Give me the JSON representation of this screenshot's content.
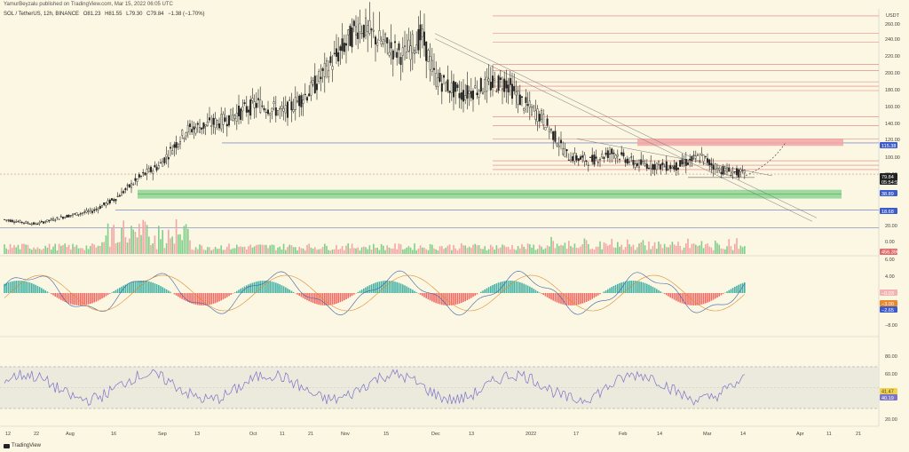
{
  "header": {
    "publisher": "YamurBeyzalu published on TradingView.com, Mar 15, 2022 06:05 UTC",
    "symbol": "SOL / TetherUS, 12h, BINANCE",
    "open": "O81.23",
    "high": "H81.55",
    "low": "L79.30",
    "close": "C79.84",
    "change": "−1.38 (−1.70%)"
  },
  "currency": "USDT",
  "logo": "TradingView",
  "colors": {
    "background": "#fbf7e2",
    "up_candle": "#222222",
    "down_candle": "#222222",
    "support_zone": "#7fcf8a",
    "resistance_zone": "#f2a6a6",
    "macd_pos": "#26a69a",
    "macd_neg": "#ef5350",
    "rsi_line": "#7b74c9",
    "rsi_band": "#e9e5dc"
  },
  "chart_data": [
    {
      "type": "line",
      "name_hint": "price",
      "x_ticks": [
        "12",
        "22",
        "Aug",
        "16",
        "Sep",
        "13",
        "Oct",
        "11",
        "21",
        "Nov",
        "15",
        "Dec",
        "13",
        "2022",
        "17",
        "Feb",
        "14",
        "Mar",
        "14",
        "Apr",
        "11",
        "21"
      ],
      "y_ticks": [
        260,
        240,
        220,
        200,
        180,
        160,
        140,
        120,
        100,
        80,
        60,
        40
      ],
      "ylim": [
        20,
        270
      ],
      "x": [
        "Jul 10",
        "Jul 25",
        "Aug 5",
        "Aug 16",
        "Aug 25",
        "Sep 3",
        "Sep 8",
        "Sep 13",
        "Sep 22",
        "Oct 1",
        "Oct 11",
        "Oct 21",
        "Nov 1",
        "Nov 6",
        "Nov 15",
        "Nov 25",
        "Dec 1",
        "Dec 8",
        "Dec 15",
        "Dec 25",
        "Jan 1",
        "Jan 10",
        "Jan 20",
        "Jan 24",
        "Feb 1",
        "Feb 8",
        "Feb 14",
        "Feb 24",
        "Mar 2",
        "Mar 8",
        "Mar 14"
      ],
      "close": [
        28,
        23,
        32,
        38,
        52,
        78,
        90,
        130,
        140,
        160,
        150,
        175,
        215,
        250,
        230,
        215,
        238,
        190,
        170,
        180,
        185,
        160,
        145,
        100,
        95,
        105,
        92,
        88,
        100,
        85,
        79.84
      ],
      "levels": {
        "horizontal_red": [
          260,
          240,
          230,
          205,
          198,
          185,
          180,
          175,
          145,
          135,
          120,
          95,
          90,
          85
        ],
        "tags": [
          {
            "label": "115.38",
            "value": 115.38
          },
          {
            "label": "79.84",
            "value": 79.84
          },
          {
            "label": "05:54:56",
            "value": 74
          },
          {
            "label": "38.89",
            "value": 38.89
          },
          {
            "label": "18.68",
            "value": 18.68
          }
        ]
      },
      "volume_label": "456.396K"
    },
    {
      "type": "bar",
      "name_hint": "macd",
      "y_ticks": [
        6,
        4,
        -4,
        -8
      ],
      "tags": [
        {
          "label": "−0.03",
          "value": -0.03
        },
        {
          "label": "−3.00",
          "value": -3.0
        },
        {
          "label": "−2.65",
          "value": -2.65
        }
      ]
    },
    {
      "type": "line",
      "name_hint": "rsi",
      "y_ticks": [
        80,
        60,
        20
      ],
      "tags": [
        {
          "label": "41.47",
          "value": 41.47
        },
        {
          "label": "40.19",
          "value": 40.19
        }
      ]
    }
  ],
  "axis_labels": {
    "price": [
      "260.00",
      "240.00",
      "220.00",
      "200.00",
      "180.00",
      "160.00",
      "140.00",
      "120.00",
      "100.00",
      "80.00",
      "60.00",
      "40.00",
      "20.00",
      "0.00"
    ],
    "macd": [
      "6.00",
      "4.00",
      "−4.00",
      "−8.00"
    ],
    "rsi": [
      "80.00",
      "60.00",
      "20.00"
    ]
  }
}
